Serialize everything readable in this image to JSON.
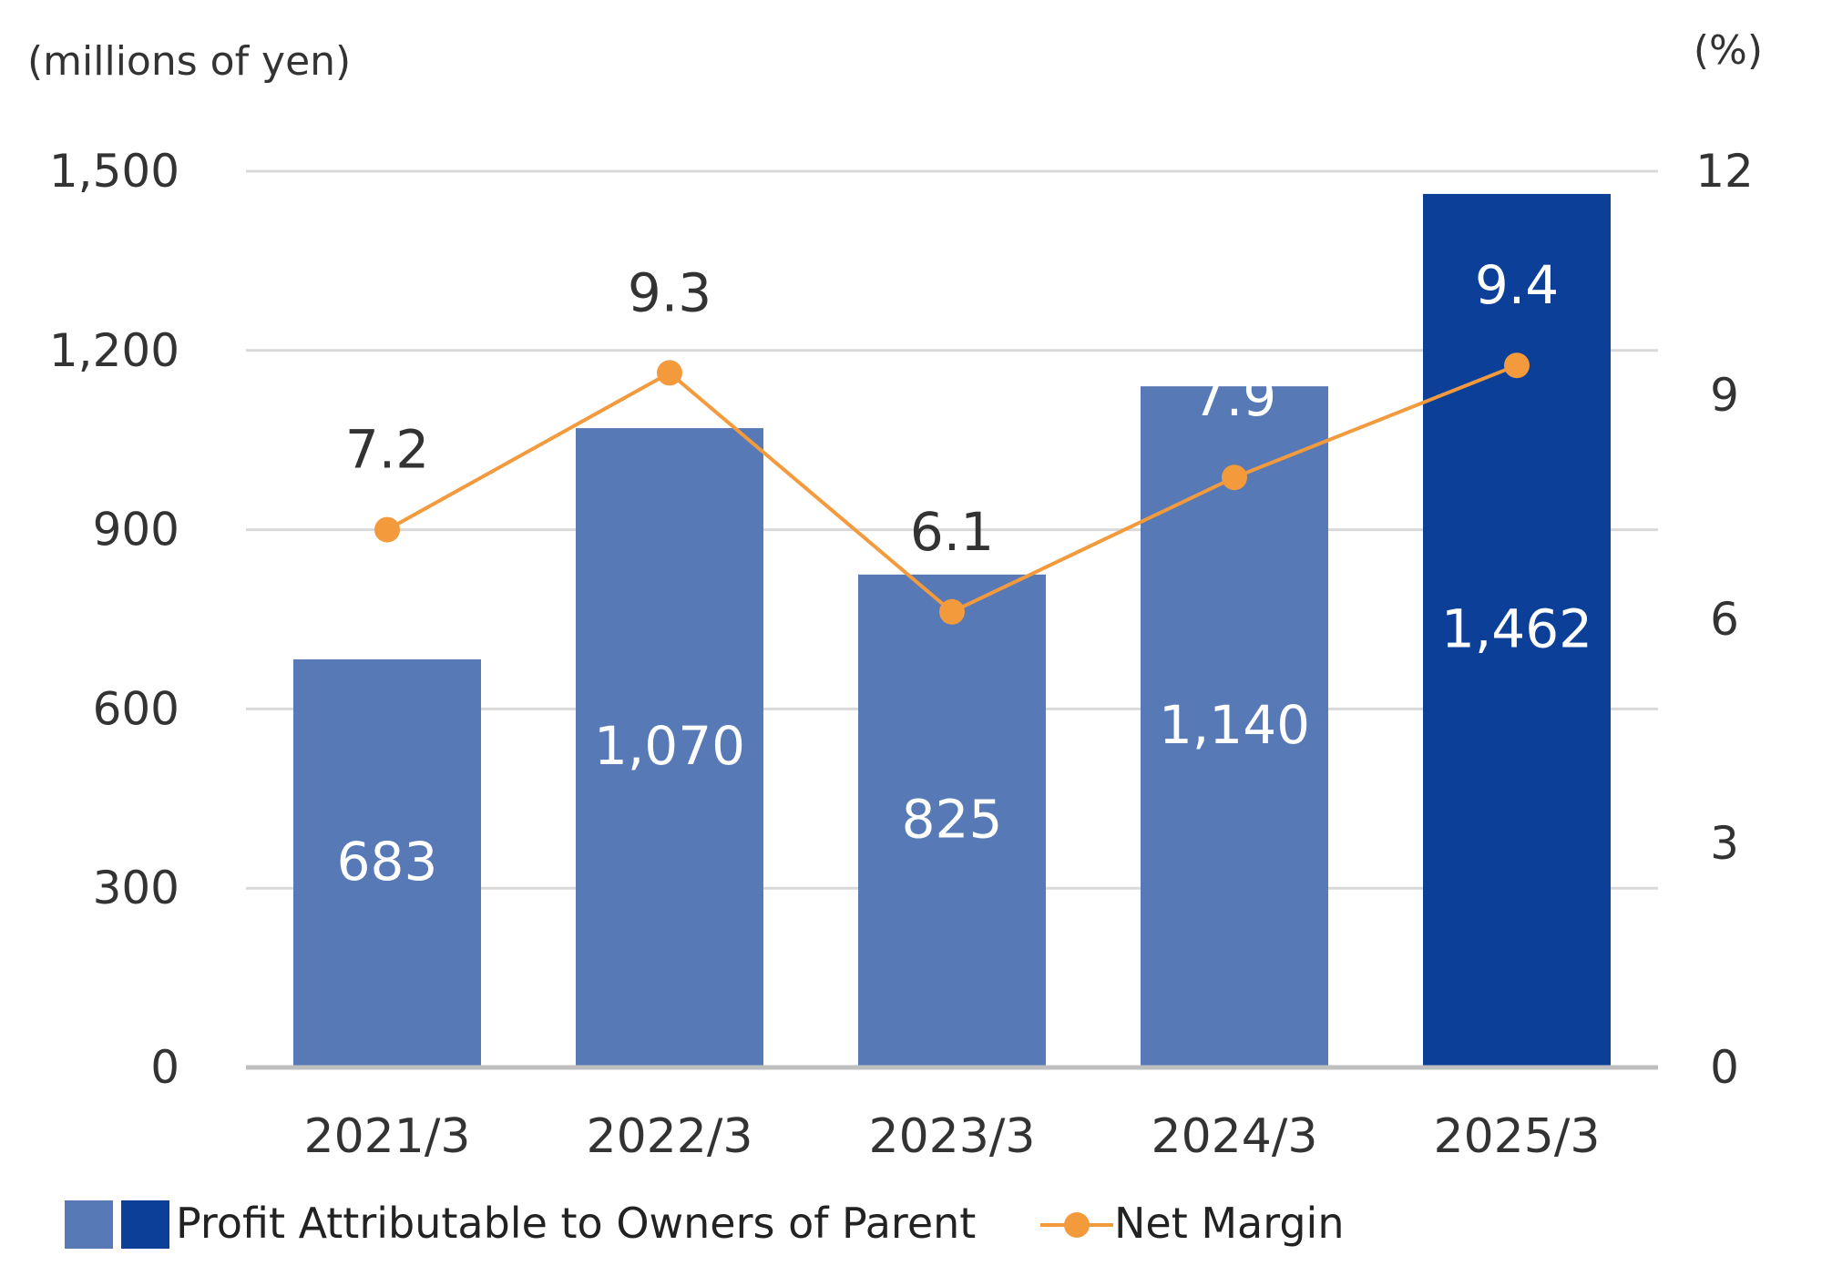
{
  "chart_data": {
    "type": "bar+line",
    "categories": [
      "2021/3",
      "2022/3",
      "2023/3",
      "2024/3",
      "2025/3"
    ],
    "series": [
      {
        "name": "Profit Attributable to Owners of Parent",
        "type": "bar",
        "axis": "left",
        "values": [
          683,
          1070,
          825,
          1140,
          1462
        ],
        "value_labels": [
          "683",
          "1,070",
          "825",
          "1,140",
          "1,462"
        ],
        "colors": [
          "#5779b6",
          "#5779b6",
          "#5779b6",
          "#5779b6",
          "#0c3f98"
        ]
      },
      {
        "name": "Net Margin",
        "type": "line",
        "axis": "right",
        "values": [
          7.2,
          9.3,
          6.1,
          7.9,
          9.4
        ],
        "value_labels": [
          "7.2",
          "9.3",
          "6.1",
          "7.9",
          "9.4"
        ],
        "color": "#f39a3d"
      }
    ],
    "left_axis": {
      "unit_label": "(millions of yen)",
      "range": [
        0,
        1500
      ],
      "ticks": [
        0,
        300,
        600,
        900,
        1200,
        1500
      ],
      "tick_labels": [
        "0",
        "300",
        "600",
        "900",
        "1,200",
        "1,500"
      ]
    },
    "right_axis": {
      "unit_label": "(%)",
      "range": [
        0,
        12
      ],
      "ticks": [
        0,
        3,
        6,
        9,
        12
      ],
      "tick_labels": [
        "0",
        "3",
        "6",
        "9",
        "12"
      ]
    },
    "grid": true,
    "legend": {
      "placement": "bottom-left",
      "bar_label": "Profit Attributable to Owners of Parent",
      "line_label": "Net Margin",
      "bar_swatch_colors": [
        "#5779b6",
        "#0c3f98"
      ]
    },
    "colors": {
      "grid": "#d9d9d9",
      "baseline": "#bfbfbf",
      "bar_label_text": "#ffffff",
      "line_label_text": "#333333",
      "axis_text": "#333333"
    }
  }
}
